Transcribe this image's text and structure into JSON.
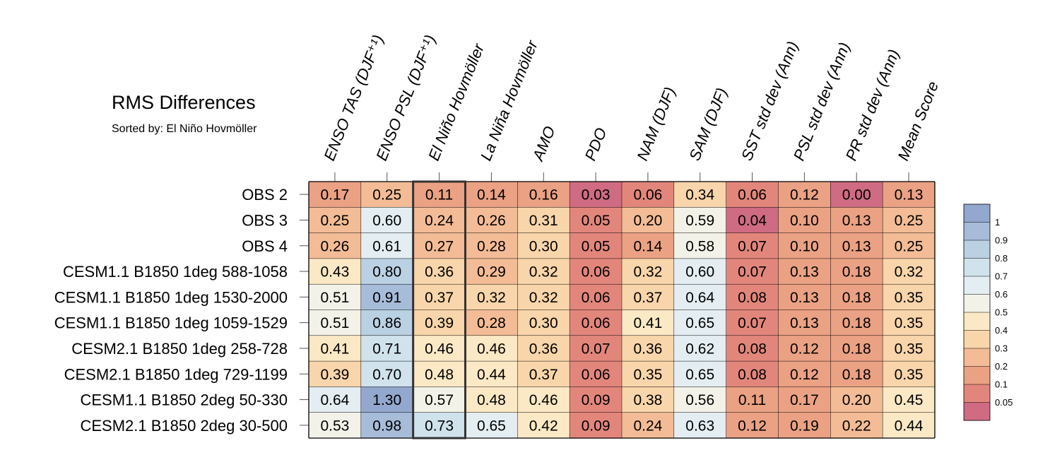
{
  "chart_data": {
    "type": "heatmap",
    "title": "RMS Differences",
    "subtitle": "Sorted by: El Niño Hovmöller",
    "highlight_column": 2,
    "columns": [
      "ENSO TAS (DJF⁺¹)",
      "ENSO PSL (DJF⁺¹)",
      "El Niño Hovmöller",
      "La Niña Hovmöller",
      "AMO",
      "PDO",
      "NAM (DJF)",
      "SAM (DJF)",
      "SST std dev (Ann)",
      "PSL std dev (Ann)",
      "PR std dev (Ann)",
      "Mean Score"
    ],
    "rows": [
      "OBS 2",
      "OBS 3",
      "OBS 4",
      "CESM1.1 B1850 1deg 588-1058",
      "CESM1.1 B1850 1deg 1530-2000",
      "CESM1.1 B1850 1deg 1059-1529",
      "CESM2.1 B1850 1deg 258-728",
      "CESM2.1 B1850 1deg 729-1199",
      "CESM1.1 B1850 2deg 50-330",
      "CESM2.1 B1850 2deg 30-500"
    ],
    "values": [
      [
        "0.17",
        "0.25",
        "0.11",
        "0.14",
        "0.16",
        "0.03",
        "0.06",
        "0.34",
        "0.06",
        "0.12",
        "0.00",
        "0.13"
      ],
      [
        "0.25",
        "0.60",
        "0.24",
        "0.26",
        "0.31",
        "0.05",
        "0.20",
        "0.59",
        "0.04",
        "0.10",
        "0.13",
        "0.25"
      ],
      [
        "0.26",
        "0.61",
        "0.27",
        "0.28",
        "0.30",
        "0.05",
        "0.14",
        "0.58",
        "0.07",
        "0.10",
        "0.13",
        "0.25"
      ],
      [
        "0.43",
        "0.80",
        "0.36",
        "0.29",
        "0.32",
        "0.06",
        "0.32",
        "0.60",
        "0.07",
        "0.13",
        "0.18",
        "0.32"
      ],
      [
        "0.51",
        "0.91",
        "0.37",
        "0.32",
        "0.32",
        "0.06",
        "0.37",
        "0.64",
        "0.08",
        "0.13",
        "0.18",
        "0.35"
      ],
      [
        "0.51",
        "0.86",
        "0.39",
        "0.28",
        "0.30",
        "0.06",
        "0.41",
        "0.65",
        "0.07",
        "0.13",
        "0.18",
        "0.35"
      ],
      [
        "0.41",
        "0.71",
        "0.46",
        "0.46",
        "0.36",
        "0.07",
        "0.36",
        "0.62",
        "0.08",
        "0.12",
        "0.18",
        "0.35"
      ],
      [
        "0.39",
        "0.70",
        "0.48",
        "0.44",
        "0.37",
        "0.06",
        "0.35",
        "0.65",
        "0.08",
        "0.12",
        "0.18",
        "0.35"
      ],
      [
        "0.64",
        "1.30",
        "0.57",
        "0.48",
        "0.46",
        "0.09",
        "0.38",
        "0.56",
        "0.11",
        "0.17",
        "0.20",
        "0.45"
      ],
      [
        "0.53",
        "0.98",
        "0.73",
        "0.65",
        "0.42",
        "0.09",
        "0.24",
        "0.63",
        "0.12",
        "0.19",
        "0.22",
        "0.44"
      ]
    ],
    "colorbar": {
      "labels": [
        "1",
        "0.9",
        "0.8",
        "0.7",
        "0.6",
        "0.5",
        "0.4",
        "0.3",
        "0.2",
        "0.1",
        "0.05"
      ],
      "colors": [
        "#93a8ce",
        "#a6bcd9",
        "#bad0e3",
        "#d0e2ec",
        "#e4eef2",
        "#f3f2e9",
        "#fbe8c5",
        "#f8d5aa",
        "#f3bc96",
        "#eba184",
        "#e2867c",
        "#cf6b82"
      ]
    }
  }
}
